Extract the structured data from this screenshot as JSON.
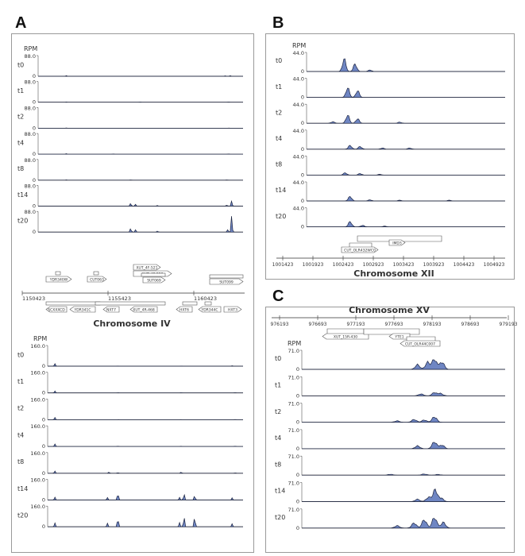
{
  "panels": {
    "A": {
      "letter": "A"
    },
    "B": {
      "letter": "B"
    },
    "C": {
      "letter": "C"
    }
  },
  "common": {
    "rpm_label": "RPM",
    "track_labels": [
      "t0",
      "t1",
      "t2",
      "t4",
      "t8",
      "t14",
      "t20"
    ],
    "fill_color": "#6f86c3",
    "line_color": "#1b2340"
  },
  "chart_data": [
    {
      "id": "A-top",
      "type": "area",
      "ylabel": "RPM",
      "ymax_label": "88.0",
      "ymin_label": "0",
      "ylim": [
        0,
        88
      ],
      "xlim": [
        1150423,
        1163423
      ],
      "series": [
        {
          "name": "t0",
          "peaks": [
            [
              1152200,
              3
            ],
            [
              1162300,
              2
            ],
            [
              1162600,
              3
            ]
          ]
        },
        {
          "name": "t1",
          "peaks": [
            [
              1152200,
              1
            ],
            [
              1156900,
              1
            ],
            [
              1162500,
              1
            ]
          ]
        },
        {
          "name": "t2",
          "peaks": [
            [
              1152200,
              1
            ],
            [
              1162500,
              1
            ]
          ]
        },
        {
          "name": "t4",
          "peaks": [
            [
              1152200,
              2
            ],
            [
              1155200,
              1
            ],
            [
              1162500,
              1
            ]
          ]
        },
        {
          "name": "t8",
          "peaks": [
            [
              1152200,
              1
            ],
            [
              1156300,
              1
            ],
            [
              1162400,
              1
            ]
          ]
        },
        {
          "name": "t14",
          "peaks": [
            [
              1156300,
              14
            ],
            [
              1156600,
              8
            ],
            [
              1158000,
              4
            ],
            [
              1162700,
              22
            ],
            [
              1162400,
              6
            ]
          ]
        },
        {
          "name": "t20",
          "peaks": [
            [
              1156300,
              18
            ],
            [
              1156600,
              10
            ],
            [
              1158000,
              6
            ],
            [
              1162700,
              70
            ],
            [
              1162450,
              14
            ]
          ]
        }
      ],
      "genes_top": [
        "YDR340W",
        "CUT063",
        "XUT_4F-521",
        "XUT_4F-523",
        "SUT069",
        "SUT099"
      ],
      "axis_ticks": [
        "1150423",
        "1155423",
        "1160423"
      ],
      "genes_bottom": [
        "SCXXXCD",
        "YDR341C",
        "NXT7",
        "XUT_4R-468",
        "HXT6",
        "YDR344C",
        "HXT3"
      ],
      "title": "Chromosome IV"
    },
    {
      "id": "A-bottom",
      "type": "area",
      "ylabel": "RPM",
      "ymax_label": "160.0",
      "ymin_label": "0",
      "ylim": [
        0,
        160
      ],
      "xlim": [
        1150423,
        1163423
      ],
      "series": [
        {
          "name": "t0",
          "peaks": [
            [
              1150900,
              22
            ],
            [
              1155100,
              2
            ],
            [
              1159300,
              2
            ],
            [
              1162700,
              3
            ]
          ]
        },
        {
          "name": "t1",
          "peaks": [
            [
              1150900,
              18
            ],
            [
              1155100,
              2
            ],
            [
              1159300,
              2
            ],
            [
              1162900,
              3
            ]
          ]
        },
        {
          "name": "t2",
          "peaks": [
            [
              1150900,
              20
            ],
            [
              1155100,
              2
            ],
            [
              1159300,
              2
            ],
            [
              1162900,
              3
            ]
          ]
        },
        {
          "name": "t4",
          "peaks": [
            [
              1150900,
              22
            ],
            [
              1155100,
              3
            ],
            [
              1159300,
              3
            ],
            [
              1162900,
              3
            ]
          ]
        },
        {
          "name": "t8",
          "peaks": [
            [
              1150900,
              20
            ],
            [
              1154500,
              10
            ],
            [
              1155100,
              6
            ],
            [
              1159300,
              12
            ],
            [
              1162900,
              4
            ]
          ]
        },
        {
          "name": "t14",
          "peaks": [
            [
              1150900,
              26
            ],
            [
              1154400,
              28
            ],
            [
              1155100,
              64
            ],
            [
              1159200,
              28
            ],
            [
              1159500,
              55
            ],
            [
              1160200,
              40
            ],
            [
              1162700,
              18
            ]
          ]
        },
        {
          "name": "t20",
          "peaks": [
            [
              1150900,
              35
            ],
            [
              1154400,
              40
            ],
            [
              1155100,
              80
            ],
            [
              1159200,
              45
            ],
            [
              1159500,
              90
            ],
            [
              1160200,
              88
            ],
            [
              1162700,
              24
            ]
          ]
        }
      ]
    },
    {
      "id": "B",
      "type": "area",
      "ylabel": "RPM",
      "ymax_label": "44.0",
      "ymin_label": "0",
      "ylim": [
        0,
        44
      ],
      "xlim": [
        1001423,
        1005423
      ],
      "series": [
        {
          "name": "t0",
          "peaks": [
            [
              1002180,
              34
            ],
            [
              1002400,
              20
            ],
            [
              1002700,
              4
            ]
          ]
        },
        {
          "name": "t1",
          "peaks": [
            [
              1002250,
              26
            ],
            [
              1002450,
              18
            ]
          ]
        },
        {
          "name": "t2",
          "peaks": [
            [
              1002250,
              22
            ],
            [
              1002450,
              12
            ],
            [
              1001950,
              4
            ],
            [
              1003300,
              3
            ]
          ]
        },
        {
          "name": "t4",
          "peaks": [
            [
              1002300,
              10
            ],
            [
              1002500,
              7
            ],
            [
              1002950,
              3
            ],
            [
              1003500,
              3
            ]
          ]
        },
        {
          "name": "t8",
          "peaks": [
            [
              1002200,
              6
            ],
            [
              1002500,
              4
            ],
            [
              1002900,
              2
            ]
          ]
        },
        {
          "name": "t14",
          "peaks": [
            [
              1002300,
              12
            ],
            [
              1002700,
              3
            ],
            [
              1003300,
              2
            ],
            [
              1004300,
              2
            ]
          ]
        },
        {
          "name": "t20",
          "peaks": [
            [
              1002300,
              14
            ],
            [
              1002550,
              4
            ],
            [
              1003000,
              2
            ]
          ]
        }
      ],
      "genes": [
        "IMD3",
        "CUT_OLR432WC0"
      ],
      "axis_ticks": [
        "1001423",
        "1001923",
        "1002423",
        "1002923",
        "1003423",
        "1003923",
        "1004423",
        "1004923"
      ],
      "title": "Chromosome XII"
    },
    {
      "id": "C",
      "type": "area",
      "ylabel": "RPM",
      "ymax_label": "71.0",
      "ymin_label": "0",
      "ylim": [
        0,
        71
      ],
      "xlim": [
        976193,
        979193
      ],
      "title": "Chromosome XV",
      "axis_ticks": [
        "976193",
        "976693",
        "977193",
        "977693",
        "978193",
        "978693",
        "979193"
      ],
      "genes": [
        "XUT_15R-430",
        "YTE1",
        "CUT_OLR44C007"
      ],
      "series": [
        {
          "name": "t0",
          "peaks": [
            [
              977900,
              20
            ],
            [
              978050,
              30
            ],
            [
              978150,
              44
            ],
            [
              978260,
              32
            ]
          ]
        },
        {
          "name": "t1",
          "peaks": [
            [
              977950,
              8
            ],
            [
              978150,
              14
            ],
            [
              978240,
              10
            ]
          ]
        },
        {
          "name": "t2",
          "peaks": [
            [
              977600,
              6
            ],
            [
              977850,
              12
            ],
            [
              978000,
              10
            ],
            [
              978150,
              24
            ]
          ]
        },
        {
          "name": "t4",
          "peaks": [
            [
              977900,
              12
            ],
            [
              978150,
              30
            ],
            [
              978260,
              16
            ]
          ]
        },
        {
          "name": "t8",
          "peaks": [
            [
              977500,
              4
            ],
            [
              978000,
              5
            ],
            [
              978200,
              3
            ]
          ]
        },
        {
          "name": "t14",
          "peaks": [
            [
              977900,
              10
            ],
            [
              978060,
              18
            ],
            [
              978160,
              50
            ],
            [
              978250,
              14
            ]
          ]
        },
        {
          "name": "t20",
          "peaks": [
            [
              977600,
              10
            ],
            [
              977850,
              22
            ],
            [
              978000,
              36
            ],
            [
              978150,
              46
            ],
            [
              978280,
              24
            ]
          ]
        }
      ]
    }
  ]
}
